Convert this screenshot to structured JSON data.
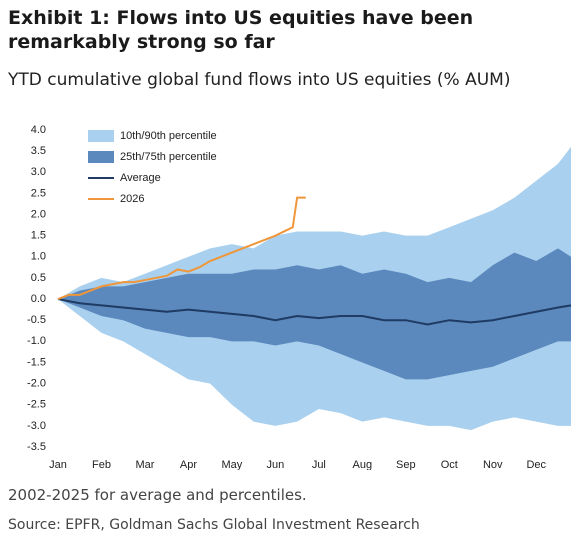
{
  "chart_data": {
    "type": "area",
    "title": "Exhibit 1: Flows into US equities have been remarkably strong so far",
    "subtitle": "YTD cumulative global fund flows into US equities (% AUM)",
    "note": "2002-2025 for average and percentiles.",
    "source": "Source: EPFR, Goldman Sachs Global Investment Research",
    "x": [
      0,
      0.5,
      1,
      1.5,
      2,
      2.5,
      3,
      3.5,
      4,
      4.5,
      5,
      5.5,
      6,
      6.5,
      7,
      7.5,
      8,
      8.5,
      9,
      9.5,
      10,
      10.5,
      11,
      11.5,
      11.8
    ],
    "xlim": [
      0,
      11.8
    ],
    "xticks": [
      {
        "value": 0,
        "label": "Jan"
      },
      {
        "value": 1,
        "label": "Feb"
      },
      {
        "value": 2,
        "label": "Mar"
      },
      {
        "value": 3,
        "label": "Apr"
      },
      {
        "value": 4,
        "label": "May"
      },
      {
        "value": 5,
        "label": "Jun"
      },
      {
        "value": 6,
        "label": "Jul"
      },
      {
        "value": 7,
        "label": "Aug"
      },
      {
        "value": 8,
        "label": "Sep"
      },
      {
        "value": 9,
        "label": "Oct"
      },
      {
        "value": 10,
        "label": "Nov"
      },
      {
        "value": 11,
        "label": "Dec"
      }
    ],
    "ylim": [
      -3.5,
      4.0
    ],
    "yticks": [
      {
        "value": 4,
        "label": "4.0"
      },
      3.5,
      {
        "value": 3,
        "label": "3.0"
      },
      2.5,
      {
        "value": 2,
        "label": "2.0"
      },
      1.5,
      {
        "value": 1,
        "label": "1.0"
      },
      0.5,
      {
        "value": 0,
        "label": "0.0"
      },
      -0.5,
      {
        "value": -1,
        "label": "-1.0"
      },
      -1.5,
      {
        "value": -2,
        "label": "-2.0"
      },
      -2.5,
      {
        "value": -3,
        "label": "-3.0"
      },
      -3.5
    ],
    "legend": "upper-left",
    "series": [
      {
        "name": "10th/90th percentile",
        "type": "band",
        "color": "#a9d0ee",
        "high": [
          0,
          0.3,
          0.5,
          0.4,
          0.6,
          0.8,
          1.0,
          1.2,
          1.3,
          1.2,
          1.5,
          1.6,
          1.6,
          1.6,
          1.5,
          1.6,
          1.5,
          1.5,
          1.7,
          1.9,
          2.1,
          2.4,
          2.8,
          3.2,
          3.6
        ],
        "low": [
          0,
          -0.4,
          -0.8,
          -1.0,
          -1.3,
          -1.6,
          -1.9,
          -2.0,
          -2.5,
          -2.9,
          -3.0,
          -2.9,
          -2.6,
          -2.7,
          -2.9,
          -2.8,
          -2.9,
          -3.0,
          -3.0,
          -3.1,
          -2.9,
          -2.8,
          -2.9,
          -3.0,
          -3.0
        ]
      },
      {
        "name": "25th/75th percentile",
        "type": "band",
        "color": "#5b88bd",
        "high": [
          0,
          0.2,
          0.3,
          0.3,
          0.4,
          0.5,
          0.6,
          0.6,
          0.6,
          0.7,
          0.7,
          0.8,
          0.7,
          0.8,
          0.6,
          0.7,
          0.6,
          0.4,
          0.5,
          0.4,
          0.8,
          1.1,
          0.9,
          1.2,
          1.0
        ],
        "low": [
          0,
          -0.2,
          -0.4,
          -0.5,
          -0.7,
          -0.8,
          -0.9,
          -0.9,
          -1.0,
          -1.0,
          -1.1,
          -1.0,
          -1.1,
          -1.3,
          -1.5,
          -1.7,
          -1.9,
          -1.9,
          -1.8,
          -1.7,
          -1.6,
          -1.4,
          -1.2,
          -1.0,
          -1.0
        ]
      },
      {
        "name": "Average",
        "type": "line",
        "color": "#1f3b63",
        "values": [
          0,
          -0.1,
          -0.15,
          -0.2,
          -0.25,
          -0.3,
          -0.25,
          -0.3,
          -0.35,
          -0.4,
          -0.5,
          -0.4,
          -0.45,
          -0.4,
          -0.4,
          -0.5,
          -0.5,
          -0.6,
          -0.5,
          -0.55,
          -0.5,
          -0.4,
          -0.3,
          -0.2,
          -0.15
        ]
      },
      {
        "name": "2026",
        "type": "line",
        "color": "#f0963a",
        "x": [
          0,
          0.25,
          0.5,
          0.75,
          1,
          1.25,
          1.5,
          1.75,
          2,
          2.25,
          2.5,
          2.75,
          3,
          3.25,
          3.5,
          3.75,
          4,
          4.25,
          4.5,
          4.75,
          5,
          5.2,
          5.4,
          5.5,
          5.7
        ],
        "values": [
          0,
          0.1,
          0.1,
          0.2,
          0.3,
          0.35,
          0.4,
          0.4,
          0.45,
          0.5,
          0.55,
          0.7,
          0.65,
          0.75,
          0.9,
          1.0,
          1.1,
          1.2,
          1.3,
          1.4,
          1.5,
          1.6,
          1.7,
          2.4,
          2.4
        ]
      }
    ]
  }
}
